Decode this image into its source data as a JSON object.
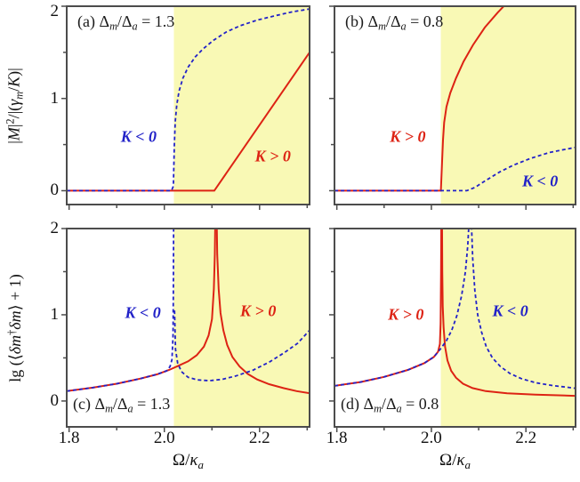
{
  "figure": {
    "colors": {
      "red": "#dd2314",
      "blue": "#2222c8",
      "shade": "#f9f9b5",
      "border": "#4c4c4c",
      "text": "#111111",
      "background": "#ffffff"
    },
    "xlabel": "Ω/κa",
    "xlabel_tokens": [
      {
        "t": "Ω/"
      },
      {
        "t": "κ",
        "i": true
      },
      {
        "t": "a",
        "sub": true
      }
    ]
  },
  "chart_data": [
    {
      "id": "a",
      "type": "line",
      "title": {
        "prefix": "(a)",
        "param": "Δm/Δa",
        "value": "1.3",
        "corner": "top"
      },
      "ylabel": "|M|²/|(γm/K)|",
      "ylabel_tokens": [
        {
          "t": "|"
        },
        {
          "t": "M",
          "i": true
        },
        {
          "t": "|"
        },
        {
          "t": "2",
          "sup": true
        },
        {
          "t": "/|("
        },
        {
          "t": "γ",
          "i": true
        },
        {
          "t": "m",
          "sub": true
        },
        {
          "t": "/"
        },
        {
          "t": "K",
          "i": true
        },
        {
          "t": ")|"
        }
      ],
      "xlim": [
        1.795,
        2.305
      ],
      "ylim": [
        -0.15,
        2.0
      ],
      "x_ticks": [
        1.8,
        2.0,
        2.2
      ],
      "x_minor_ticks": [
        1.9,
        2.1,
        2.3
      ],
      "y_ticks": [
        0,
        1,
        2
      ],
      "y_minor_ticks": [
        0.5,
        1.5
      ],
      "x_tick_labels": null,
      "y_tick_labels": [
        "0",
        "1",
        "2"
      ],
      "show_xlabel": false,
      "shade_from": 2.02,
      "grid": false,
      "series": [
        {
          "name": "K < 0",
          "style": "dashed",
          "color": "blue",
          "paths": [
            [
              [
                1.795,
                0
              ],
              [
                2.015,
                0
              ],
              [
                2.019,
                0.05
              ],
              [
                2.021,
                0.5
              ],
              [
                2.023,
                0.75
              ],
              [
                2.026,
                0.93
              ],
              [
                2.031,
                1.08
              ],
              [
                2.039,
                1.22
              ],
              [
                2.05,
                1.34
              ],
              [
                2.065,
                1.45
              ],
              [
                2.082,
                1.54
              ],
              [
                2.103,
                1.63
              ],
              [
                2.13,
                1.72
              ],
              [
                2.16,
                1.79
              ],
              [
                2.195,
                1.85
              ],
              [
                2.235,
                1.9
              ],
              [
                2.27,
                1.94
              ],
              [
                2.305,
                1.97
              ]
            ]
          ]
        },
        {
          "name": "K > 0",
          "style": "solid",
          "color": "red",
          "paths": [
            [
              [
                1.795,
                0
              ],
              [
                2.105,
                0
              ],
              [
                2.305,
                1.5
              ]
            ]
          ]
        }
      ],
      "annotations": [
        {
          "text": "K < 0",
          "x": 1.946,
          "y": 0.58,
          "color": "blue"
        },
        {
          "text": "K > 0",
          "x": 2.228,
          "y": 0.37,
          "color": "red"
        }
      ]
    },
    {
      "id": "b",
      "type": "line",
      "title": {
        "prefix": "(b)",
        "param": "Δm/Δa",
        "value": "0.8",
        "corner": "top"
      },
      "ylabel": null,
      "ylabel_tokens": null,
      "xlim": [
        1.795,
        2.305
      ],
      "ylim": [
        -0.15,
        2.0
      ],
      "x_ticks": [
        1.8,
        2.0,
        2.2
      ],
      "x_minor_ticks": [
        1.9,
        2.1,
        2.3
      ],
      "y_ticks": [
        0,
        1,
        2
      ],
      "y_minor_ticks": [
        0.5,
        1.5
      ],
      "x_tick_labels": null,
      "y_tick_labels": null,
      "show_xlabel": false,
      "shade_from": 2.02,
      "grid": false,
      "series": [
        {
          "name": "K > 0",
          "style": "solid",
          "color": "red",
          "paths": [
            [
              [
                1.795,
                0
              ],
              [
                2.02,
                0
              ],
              [
                2.0225,
                0.3
              ],
              [
                2.0245,
                0.55
              ],
              [
                2.027,
                0.74
              ],
              [
                2.032,
                0.91
              ],
              [
                2.04,
                1.06
              ],
              [
                2.052,
                1.22
              ],
              [
                2.068,
                1.4
              ],
              [
                2.088,
                1.58
              ],
              [
                2.113,
                1.77
              ],
              [
                2.14,
                1.93
              ],
              [
                2.168,
                2.08
              ]
            ]
          ]
        },
        {
          "name": "K < 0",
          "style": "dashed",
          "color": "blue",
          "paths": [
            [
              [
                1.795,
                0
              ],
              [
                2.075,
                0
              ],
              [
                2.092,
                0.035
              ],
              [
                2.115,
                0.11
              ],
              [
                2.145,
                0.205
              ],
              [
                2.175,
                0.28
              ],
              [
                2.21,
                0.35
              ],
              [
                2.25,
                0.415
              ],
              [
                2.305,
                0.47
              ]
            ]
          ]
        }
      ],
      "annotations": [
        {
          "text": "K > 0",
          "x": 1.95,
          "y": 0.58,
          "color": "red"
        },
        {
          "text": "K < 0",
          "x": 2.23,
          "y": 0.1,
          "color": "blue"
        }
      ]
    },
    {
      "id": "c",
      "type": "line",
      "title": {
        "prefix": "(c)",
        "param": "Δm/Δa",
        "value": "1.3",
        "corner": "bottom"
      },
      "ylabel": "lg (⟨δm†δm⟩ + 1)",
      "ylabel_tokens": [
        {
          "t": "lg (⟨"
        },
        {
          "t": "δm",
          "i": true
        },
        {
          "t": "†",
          "sup": true
        },
        {
          "t": "δm",
          "i": true
        },
        {
          "t": "⟩ + 1)"
        }
      ],
      "xlim": [
        1.795,
        2.305
      ],
      "ylim": [
        -0.3,
        2.0
      ],
      "x_ticks": [
        1.8,
        2.0,
        2.2
      ],
      "x_minor_ticks": [
        1.9,
        2.1,
        2.3
      ],
      "y_ticks": [
        0,
        1,
        2
      ],
      "y_minor_ticks": [
        0.5,
        1.5
      ],
      "x_tick_labels": [
        "1.8",
        "2.0",
        "2.2"
      ],
      "y_tick_labels": [
        "0",
        "1",
        "2"
      ],
      "show_xlabel": true,
      "shade_from": 2.02,
      "grid": false,
      "series": [
        {
          "name": "K > 0",
          "style": "solid",
          "color": "red",
          "paths": [
            [
              [
                1.795,
                0.115
              ],
              [
                1.85,
                0.155
              ],
              [
                1.9,
                0.2
              ],
              [
                1.95,
                0.26
              ],
              [
                1.985,
                0.31
              ],
              [
                2.01,
                0.36
              ],
              [
                2.03,
                0.41
              ],
              [
                2.05,
                0.46
              ],
              [
                2.068,
                0.53
              ],
              [
                2.083,
                0.63
              ],
              [
                2.093,
                0.76
              ],
              [
                2.1,
                0.95
              ],
              [
                2.104,
                1.3
              ],
              [
                2.106,
                1.7
              ],
              [
                2.107,
                2.1
              ]
            ],
            [
              [
                2.11,
                2.1
              ],
              [
                2.111,
                1.7
              ],
              [
                2.114,
                1.3
              ],
              [
                2.118,
                1.02
              ],
              [
                2.124,
                0.82
              ],
              [
                2.132,
                0.65
              ],
              [
                2.143,
                0.51
              ],
              [
                2.158,
                0.4
              ],
              [
                2.175,
                0.315
              ],
              [
                2.195,
                0.25
              ],
              [
                2.22,
                0.195
              ],
              [
                2.25,
                0.15
              ],
              [
                2.278,
                0.115
              ],
              [
                2.305,
                0.09
              ]
            ]
          ]
        },
        {
          "name": "K < 0",
          "style": "dashed",
          "color": "blue",
          "paths": [
            [
              [
                1.795,
                0.115
              ],
              [
                1.85,
                0.155
              ],
              [
                1.9,
                0.2
              ],
              [
                1.95,
                0.26
              ],
              [
                1.985,
                0.31
              ],
              [
                2.005,
                0.35
              ],
              [
                2.012,
                0.4
              ],
              [
                2.016,
                0.48
              ],
              [
                2.0182,
                0.75
              ],
              [
                2.019,
                1.3
              ],
              [
                2.0195,
                2.1
              ]
            ],
            [
              [
                2.0215,
                1.05
              ],
              [
                2.0235,
                0.6
              ],
              [
                2.028,
                0.44
              ],
              [
                2.036,
                0.34
              ],
              [
                2.05,
                0.275
              ],
              [
                2.07,
                0.245
              ],
              [
                2.095,
                0.235
              ],
              [
                2.122,
                0.252
              ],
              [
                2.15,
                0.29
              ],
              [
                2.185,
                0.355
              ],
              [
                2.22,
                0.45
              ],
              [
                2.252,
                0.56
              ],
              [
                2.28,
                0.67
              ],
              [
                2.305,
                0.82
              ]
            ]
          ]
        }
      ],
      "annotations": [
        {
          "text": "K < 0",
          "x": 1.955,
          "y": 1.02,
          "color": "blue"
        },
        {
          "text": "K > 0",
          "x": 2.197,
          "y": 1.04,
          "color": "red"
        }
      ]
    },
    {
      "id": "d",
      "type": "line",
      "title": {
        "prefix": "(d)",
        "param": "Δm/Δa",
        "value": "0.8",
        "corner": "bottom"
      },
      "ylabel": null,
      "ylabel_tokens": null,
      "xlim": [
        1.795,
        2.305
      ],
      "ylim": [
        -0.3,
        2.0
      ],
      "x_ticks": [
        1.8,
        2.0,
        2.2
      ],
      "x_minor_ticks": [
        1.9,
        2.1,
        2.3
      ],
      "y_ticks": [
        0,
        1,
        2
      ],
      "y_minor_ticks": [
        0.5,
        1.5
      ],
      "x_tick_labels": [
        "1.8",
        "2.0",
        "2.2"
      ],
      "y_tick_labels": null,
      "show_xlabel": true,
      "shade_from": 2.02,
      "grid": false,
      "series": [
        {
          "name": "K > 0",
          "style": "solid",
          "color": "red",
          "paths": [
            [
              [
                1.795,
                0.175
              ],
              [
                1.85,
                0.22
              ],
              [
                1.9,
                0.28
              ],
              [
                1.95,
                0.36
              ],
              [
                1.985,
                0.44
              ],
              [
                2.005,
                0.51
              ],
              [
                2.014,
                0.57
              ],
              [
                2.018,
                0.66
              ],
              [
                2.0195,
                0.9
              ],
              [
                2.0205,
                1.5
              ],
              [
                2.021,
                2.1
              ]
            ],
            [
              [
                2.0225,
                2.1
              ],
              [
                2.023,
                1.5
              ],
              [
                2.024,
                1.1
              ],
              [
                2.026,
                0.85
              ],
              [
                2.029,
                0.63
              ],
              [
                2.034,
                0.47
              ],
              [
                2.042,
                0.35
              ],
              [
                2.052,
                0.27
              ],
              [
                2.067,
                0.2
              ],
              [
                2.087,
                0.15
              ],
              [
                2.115,
                0.115
              ],
              [
                2.16,
                0.09
              ],
              [
                2.22,
                0.073
              ],
              [
                2.305,
                0.06
              ]
            ]
          ]
        },
        {
          "name": "K < 0",
          "style": "dashed",
          "color": "blue",
          "paths": [
            [
              [
                1.795,
                0.175
              ],
              [
                1.85,
                0.22
              ],
              [
                1.9,
                0.28
              ],
              [
                1.95,
                0.36
              ],
              [
                1.985,
                0.44
              ],
              [
                2.005,
                0.51
              ],
              [
                2.02,
                0.61
              ],
              [
                2.032,
                0.7
              ],
              [
                2.043,
                0.82
              ],
              [
                2.054,
                0.99
              ],
              [
                2.064,
                1.22
              ],
              [
                2.072,
                1.5
              ],
              [
                2.077,
                1.8
              ],
              [
                2.08,
                2.1
              ]
            ],
            [
              [
                2.0845,
                2.1
              ],
              [
                2.0875,
                1.65
              ],
              [
                2.092,
                1.28
              ],
              [
                2.098,
                1.0
              ],
              [
                2.106,
                0.8
              ],
              [
                2.116,
                0.63
              ],
              [
                2.129,
                0.5
              ],
              [
                2.146,
                0.4
              ],
              [
                2.166,
                0.32
              ],
              [
                2.19,
                0.26
              ],
              [
                2.22,
                0.213
              ],
              [
                2.256,
                0.18
              ],
              [
                2.305,
                0.148
              ]
            ]
          ]
        }
      ],
      "annotations": [
        {
          "text": "K > 0",
          "x": 1.946,
          "y": 1.0,
          "color": "red"
        },
        {
          "text": "K < 0",
          "x": 2.167,
          "y": 1.04,
          "color": "blue"
        }
      ]
    }
  ]
}
